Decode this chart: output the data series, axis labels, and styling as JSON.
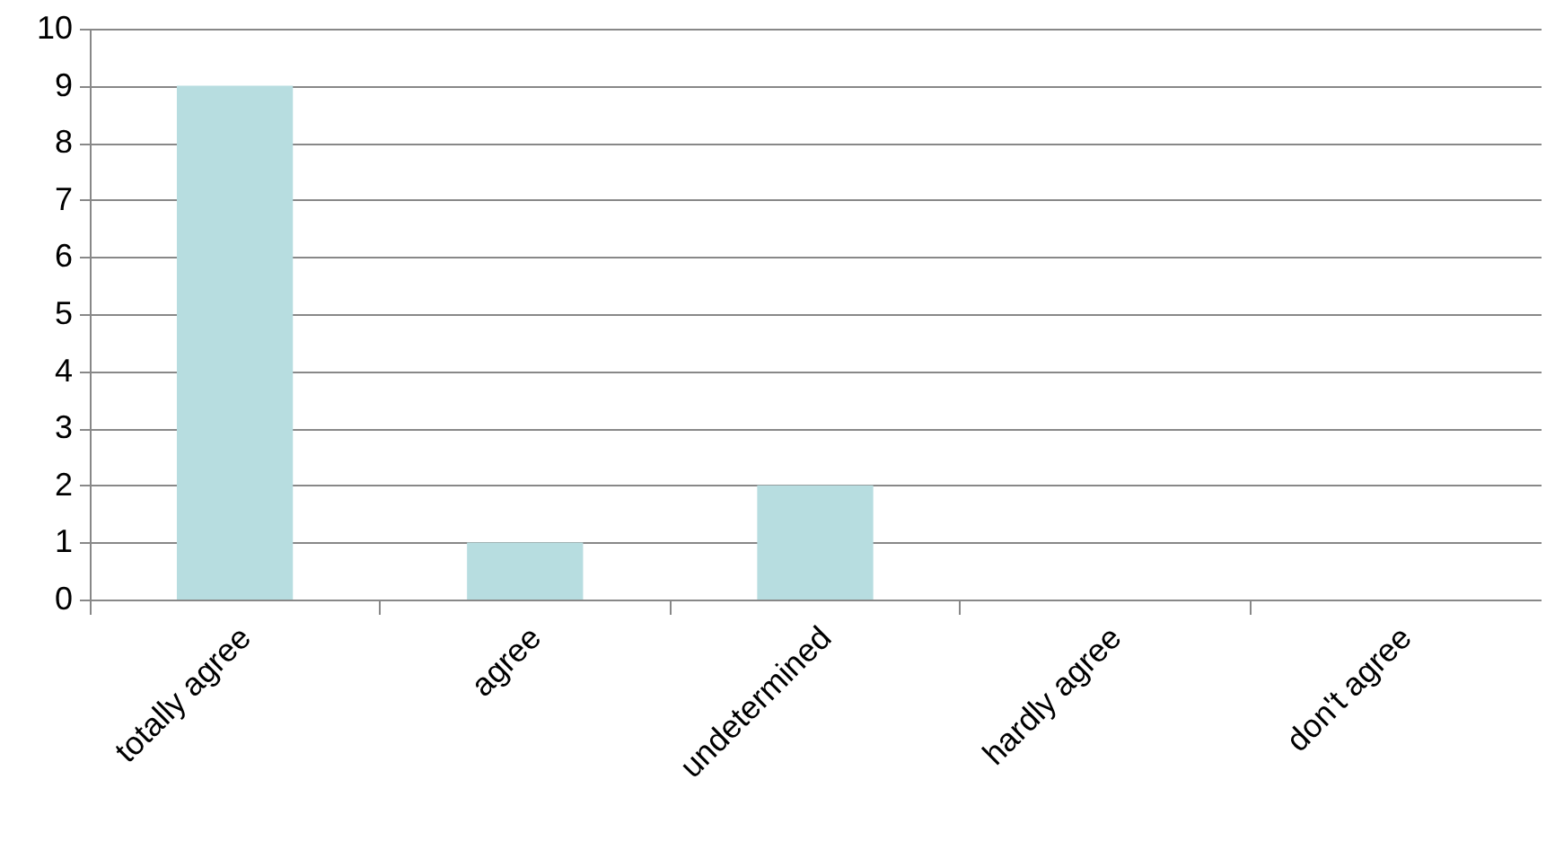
{
  "chart_data": {
    "type": "bar",
    "categories": [
      "totally agree",
      "agree",
      "undetermined",
      "hardly agree",
      "don't agree"
    ],
    "values": [
      9,
      1,
      2,
      0,
      0
    ],
    "color": "#b7dde0",
    "ylim": [
      0,
      10
    ],
    "yticks": [
      0,
      1,
      2,
      3,
      4,
      5,
      6,
      7,
      8,
      9,
      10
    ],
    "grid": "y"
  }
}
